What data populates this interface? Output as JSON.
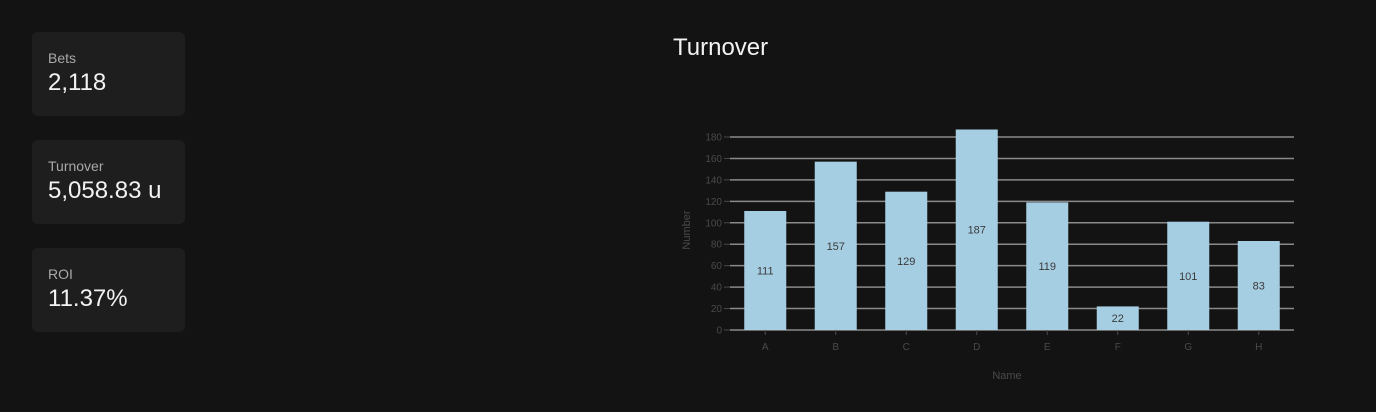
{
  "stats": [
    {
      "label": "Bets",
      "value": "2,118"
    },
    {
      "label": "Turnover",
      "value": "5,058.83 u"
    },
    {
      "label": "ROI",
      "value": "11.37%"
    }
  ],
  "colors": {
    "background": "#131313",
    "card": "#1e1e1e",
    "bar": "#a6cee3",
    "grid": "#8a8a8a",
    "axis_text": "#4a4a4a",
    "bar_label": "#3a3a3a"
  },
  "chart_data": {
    "type": "bar",
    "title": "Turnover",
    "xlabel": "Name",
    "ylabel": "Number",
    "categories": [
      "A",
      "B",
      "C",
      "D",
      "E",
      "F",
      "G",
      "H"
    ],
    "values": [
      111,
      157,
      129,
      187,
      119,
      22,
      101,
      83
    ],
    "yticks": [
      0,
      20,
      40,
      60,
      80,
      100,
      120,
      140,
      160,
      180
    ],
    "ylim": [
      0,
      180
    ],
    "grid": true,
    "legend": "none"
  }
}
